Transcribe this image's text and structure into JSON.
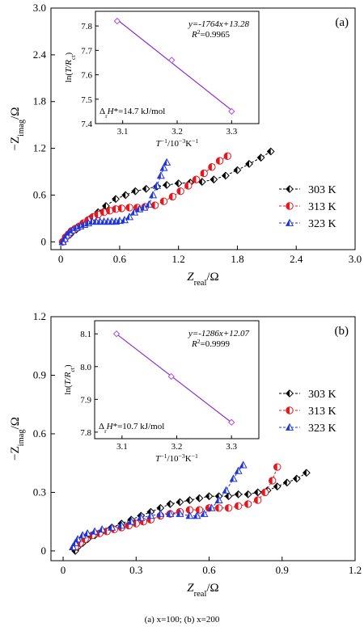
{
  "caption": "(a) x=100; (b) x=200",
  "colors": {
    "303 K": "#000000",
    "313 K": "#e4191f",
    "323 K": "#1f35d8",
    "inset_line": "#8b2fc9",
    "inset_marker": "#b04ae0"
  },
  "chart_data": [
    {
      "type": "scatter",
      "panel_label": "(a)",
      "xlabel": "Zreal/Ω",
      "ylabel": "−Zimag/Ω",
      "xlim": [
        -0.1,
        3.0
      ],
      "ylim": [
        -0.1,
        3.0
      ],
      "xticks": [
        "0",
        "0.6",
        "1.2",
        "1.8",
        "2.4",
        "3.0"
      ],
      "yticks": [
        "0",
        "0.6",
        "1.2",
        "1.8",
        "2.4",
        "3.0"
      ],
      "legend_position": "right-middle",
      "series": [
        {
          "name": "303 K",
          "marker": "diamond",
          "x": [
            0.02,
            0.05,
            0.1,
            0.16,
            0.22,
            0.3,
            0.38,
            0.46,
            0.56,
            0.66,
            0.76,
            0.87,
            0.98,
            1.08,
            1.2,
            1.32,
            1.44,
            1.56,
            1.68,
            1.8,
            1.92,
            2.04,
            2.14
          ],
          "y": [
            0.0,
            0.05,
            0.1,
            0.16,
            0.22,
            0.3,
            0.38,
            0.46,
            0.55,
            0.6,
            0.65,
            0.68,
            0.71,
            0.73,
            0.75,
            0.76,
            0.77,
            0.8,
            0.85,
            0.92,
            1.0,
            1.08,
            1.16
          ]
        },
        {
          "name": "313 K",
          "marker": "circle",
          "x": [
            0.02,
            0.05,
            0.08,
            0.11,
            0.15,
            0.19,
            0.23,
            0.28,
            0.33,
            0.38,
            0.44,
            0.5,
            0.56,
            0.62,
            0.7,
            0.78,
            0.86,
            0.96,
            1.05,
            1.14,
            1.22,
            1.3,
            1.38,
            1.46,
            1.54,
            1.62,
            1.7
          ],
          "y": [
            0.0,
            0.06,
            0.1,
            0.14,
            0.17,
            0.2,
            0.24,
            0.28,
            0.32,
            0.35,
            0.38,
            0.4,
            0.42,
            0.43,
            0.44,
            0.44,
            0.45,
            0.47,
            0.52,
            0.58,
            0.65,
            0.72,
            0.8,
            0.88,
            0.96,
            1.04,
            1.1
          ]
        },
        {
          "name": "323 K",
          "marker": "triangle",
          "x": [
            0.02,
            0.04,
            0.06,
            0.09,
            0.12,
            0.16,
            0.2,
            0.24,
            0.28,
            0.32,
            0.36,
            0.4,
            0.44,
            0.48,
            0.52,
            0.56,
            0.6,
            0.65,
            0.7,
            0.75,
            0.8,
            0.85,
            0.9,
            0.94,
            0.98,
            1.02,
            1.05,
            1.08
          ],
          "y": [
            0.0,
            0.04,
            0.08,
            0.12,
            0.15,
            0.18,
            0.2,
            0.22,
            0.24,
            0.26,
            0.26,
            0.26,
            0.26,
            0.26,
            0.26,
            0.26,
            0.27,
            0.28,
            0.32,
            0.38,
            0.42,
            0.44,
            0.48,
            0.6,
            0.72,
            0.85,
            0.95,
            1.02
          ]
        }
      ],
      "inset": {
        "type": "scatter",
        "xlabel": "T−1/10−3K−1",
        "ylabel": "ln(T/Rct)",
        "xlim": [
          3.05,
          3.35
        ],
        "ylim": [
          7.4,
          7.86
        ],
        "xticks": [
          "3.1",
          "3.2",
          "3.3"
        ],
        "yticks": [
          "7.4",
          "7.5",
          "7.6",
          "7.7",
          "7.8"
        ],
        "x": [
          3.09,
          3.19,
          3.3
        ],
        "y": [
          7.82,
          7.66,
          7.45
        ],
        "equation": "y=-1764x+13.28",
        "r2": "R2=0.9965",
        "enthalpy": "ΔrH*=14.7 kJ/mol"
      }
    },
    {
      "type": "scatter",
      "panel_label": "(b)",
      "xlabel": "Zreal/Ω",
      "ylabel": "−Zimag/Ω",
      "xlim": [
        -0.05,
        1.2
      ],
      "ylim": [
        -0.05,
        1.2
      ],
      "xticks": [
        "0",
        "0.3",
        "0.6",
        "0.9",
        "1.2"
      ],
      "yticks": [
        "0",
        "0.3",
        "0.6",
        "0.9",
        "1.2"
      ],
      "legend_position": "right-upper",
      "series": [
        {
          "name": "303 K",
          "marker": "diamond",
          "x": [
            0.05,
            0.06,
            0.08,
            0.1,
            0.13,
            0.16,
            0.2,
            0.24,
            0.28,
            0.32,
            0.36,
            0.4,
            0.44,
            0.48,
            0.52,
            0.56,
            0.6,
            0.64,
            0.68,
            0.72,
            0.76,
            0.8,
            0.84,
            0.88,
            0.92,
            0.96,
            1.0
          ],
          "y": [
            0.0,
            0.02,
            0.04,
            0.06,
            0.08,
            0.1,
            0.12,
            0.14,
            0.16,
            0.18,
            0.2,
            0.22,
            0.24,
            0.25,
            0.26,
            0.27,
            0.28,
            0.28,
            0.28,
            0.29,
            0.29,
            0.3,
            0.31,
            0.33,
            0.35,
            0.37,
            0.4
          ]
        },
        {
          "name": "313 K",
          "marker": "circle",
          "x": [
            0.05,
            0.07,
            0.09,
            0.12,
            0.15,
            0.18,
            0.21,
            0.24,
            0.27,
            0.3,
            0.33,
            0.36,
            0.4,
            0.44,
            0.48,
            0.52,
            0.56,
            0.6,
            0.64,
            0.68,
            0.72,
            0.76,
            0.8,
            0.83,
            0.86,
            0.88
          ],
          "y": [
            0.02,
            0.04,
            0.06,
            0.08,
            0.09,
            0.1,
            0.11,
            0.12,
            0.13,
            0.14,
            0.15,
            0.16,
            0.18,
            0.19,
            0.2,
            0.21,
            0.21,
            0.22,
            0.22,
            0.22,
            0.23,
            0.24,
            0.26,
            0.3,
            0.36,
            0.43
          ]
        },
        {
          "name": "323 K",
          "marker": "triangle",
          "x": [
            0.04,
            0.05,
            0.06,
            0.08,
            0.1,
            0.13,
            0.16,
            0.2,
            0.24,
            0.28,
            0.32,
            0.36,
            0.4,
            0.44,
            0.48,
            0.52,
            0.55,
            0.58,
            0.61,
            0.64,
            0.67,
            0.7,
            0.72,
            0.74
          ],
          "y": [
            0.02,
            0.04,
            0.06,
            0.08,
            0.09,
            0.1,
            0.11,
            0.12,
            0.13,
            0.15,
            0.17,
            0.18,
            0.19,
            0.19,
            0.19,
            0.18,
            0.18,
            0.19,
            0.22,
            0.26,
            0.31,
            0.37,
            0.41,
            0.44
          ]
        }
      ],
      "inset": {
        "type": "scatter",
        "xlabel": "T−1/10−3K−1",
        "ylabel": "ln(T/Rct)",
        "xlim": [
          3.05,
          3.35
        ],
        "ylim": [
          7.78,
          8.14
        ],
        "xticks": [
          "3.1",
          "3.2",
          "3.3"
        ],
        "yticks": [
          "7.8",
          "7.9",
          "8.0",
          "8.1"
        ],
        "x": [
          3.09,
          3.19,
          3.3
        ],
        "y": [
          8.1,
          7.97,
          7.83
        ],
        "equation": "y=-1286x+12.07",
        "r2": "R2=0.9999",
        "enthalpy": "ΔrH*=10.7 kJ/mol"
      }
    }
  ]
}
